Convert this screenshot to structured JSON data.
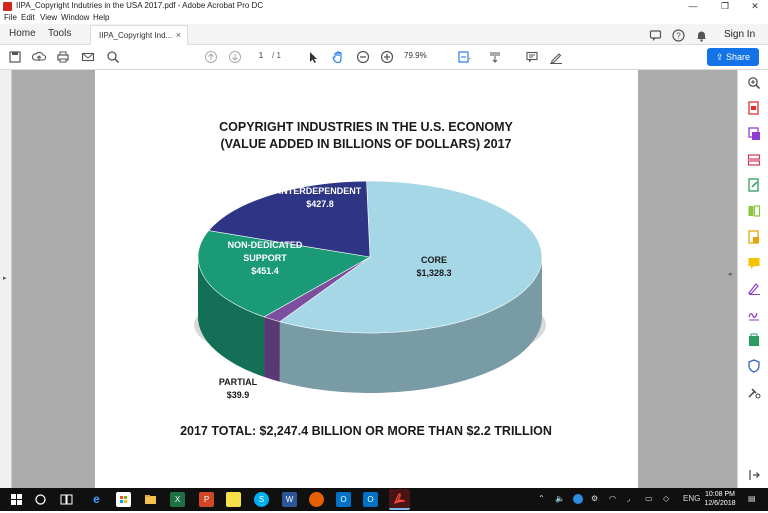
{
  "window": {
    "title": "IIPA_Copyright Indutries in the USA 2017.pdf - Adobe Acrobat Pro DC",
    "minimize": "—",
    "restore": "❐",
    "close": "✕"
  },
  "menu": [
    "File",
    "Edit",
    "View",
    "Window",
    "Help"
  ],
  "tabs": {
    "home": "Home",
    "tools": "Tools",
    "document": "IIPA_Copyright Ind...",
    "close": "×"
  },
  "header": {
    "sign_in": "Sign In",
    "icons": [
      "comment-icon",
      "help-icon",
      "bell-icon"
    ]
  },
  "toolbar": {
    "page_current": "1",
    "page_total": "/ 1",
    "zoom": "79.9%",
    "share_label": "Share",
    "icons": [
      "save-icon",
      "upload-icon",
      "print-icon",
      "email-icon",
      "search-icon",
      "prev-page-icon",
      "next-page-icon",
      "select-arrow-icon",
      "hand-icon",
      "zoom-out-icon",
      "zoom-in-icon",
      "fit-page-icon",
      "scroll-mode-icon",
      "comment-icon",
      "sign-pen-icon"
    ]
  },
  "right_pane": {
    "icons": [
      "zoom-icon",
      "export-pdf-icon",
      "create-pdf-icon",
      "organize-pages-icon",
      "edit-pdf-icon",
      "combine-files-icon",
      "scan-icon",
      "comment-icon",
      "fill-sign-icon",
      "send-sign-icon",
      "compress-icon",
      "protect-icon",
      "more-tools-icon",
      "expand-icon"
    ]
  },
  "chart_data": {
    "type": "pie",
    "title": "COPYRIGHT INDUSTRIES IN THE U.S. ECONOMY",
    "subtitle": "(VALUE ADDED IN BILLIONS OF DOLLARS) 2017",
    "slices": [
      {
        "name": "CORE",
        "value": 1328.3,
        "label": "$1,328.3",
        "color": "#a6d7e6"
      },
      {
        "name": "PARTIAL",
        "value": 39.9,
        "label": "$39.9",
        "color": "#7b4f9e"
      },
      {
        "name": "NON-DEDICATED SUPPORT",
        "value": 451.4,
        "label": "$451.4",
        "color": "#1b9a78"
      },
      {
        "name": "INTERDEPENDENT",
        "value": 427.8,
        "label": "$427.8",
        "color": "#2d3584"
      }
    ],
    "total_text": "2017 TOTAL: $2,247.4 BILLION OR MORE THAN $2.2 TRILLION",
    "style": "3d"
  },
  "taskbar": {
    "apps": [
      "windows-start-icon",
      "cortana-icon",
      "task-view-icon",
      "edge-icon",
      "store-icon",
      "explorer-icon",
      "excel-icon",
      "powerpoint-icon",
      "sticky-notes-icon",
      "skype-icon",
      "word-icon",
      "firefox-icon",
      "outlook-icon",
      "outlook-2-icon",
      "acrobat-icon"
    ],
    "language": "ENG",
    "time": "10:08 PM",
    "date": "12/6/2018"
  }
}
